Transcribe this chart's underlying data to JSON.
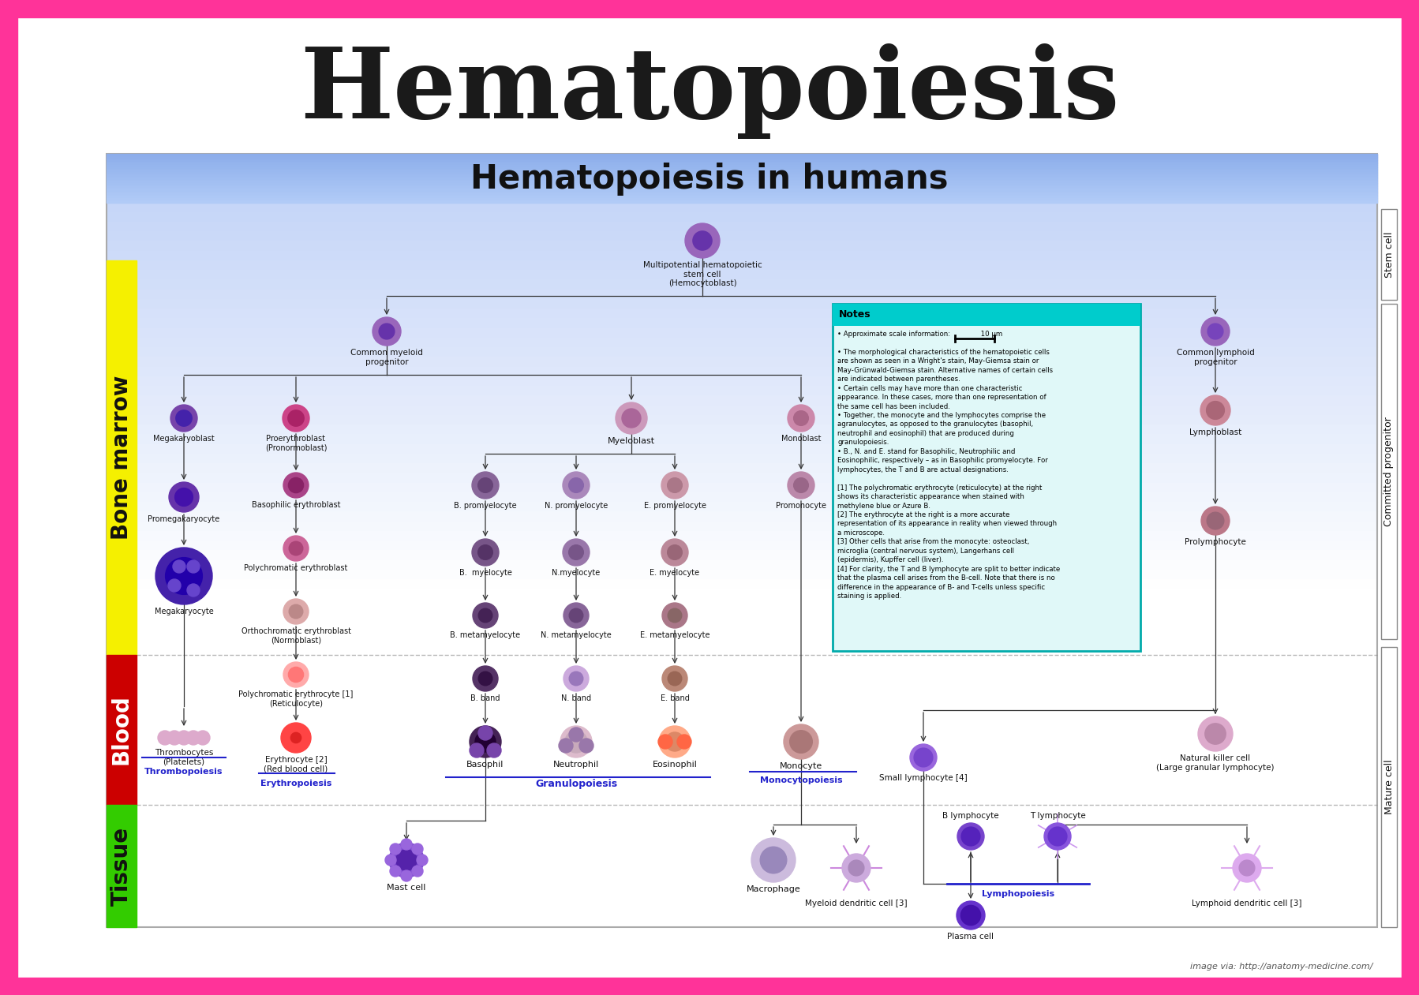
{
  "title": "Hematopoiesis",
  "subtitle": "Hematopoiesis in humans",
  "border_color": "#FF3399",
  "title_color": "#1a1a1a",
  "bg_color": "#ffffff",
  "attribution": "image via: http://anatomy-medicine.com/",
  "notes_title": "Notes",
  "notes_text": [
    "• Approximate scale information:              10 μm",
    "",
    "• The morphological characteristics of the hematopoietic cells",
    "are shown as seen in a Wright's stain, May-Giemsa stain or",
    "May-Grünwald-Giemsa stain. Alternative names of certain cells",
    "are indicated between parentheses.",
    "• Certain cells may have more than one characteristic",
    "appearance. In these cases, more than one representation of",
    "the same cell has been included.",
    "• Together, the monocyte and the lymphocytes comprise the",
    "agranulocytes, as opposed to the granulocytes (basophil,",
    "neutrophil and eosinophil) that are produced during",
    "granulopoiesis.",
    "• B., N. and E. stand for Basophilic, Neutrophilic and",
    "Eosinophilic, respectively – as in Basophilic promyelocyte. For",
    "lymphocytes, the T and B are actual designations.",
    "",
    "[1] The polychromatic erythrocyte (reticulocyte) at the right",
    "shows its characteristic appearance when stained with",
    "methylene blue or Azure B.",
    "[2] The erythrocyte at the right is a more accurate",
    "representation of its appearance in reality when viewed through",
    "a microscope.",
    "[3] Other cells that arise from the monocyte: osteoclast,",
    "microglia (central nervous system), Langerhans cell",
    "(epidermis), Kupffer cell (liver).",
    "[4] For clarity, the T and B lymphocyte are split to better indicate",
    "that the plasma cell arises from the B-cell. Note that there is no",
    "difference in the appearance of B- and T-cells unless specific",
    "staining is applied."
  ]
}
